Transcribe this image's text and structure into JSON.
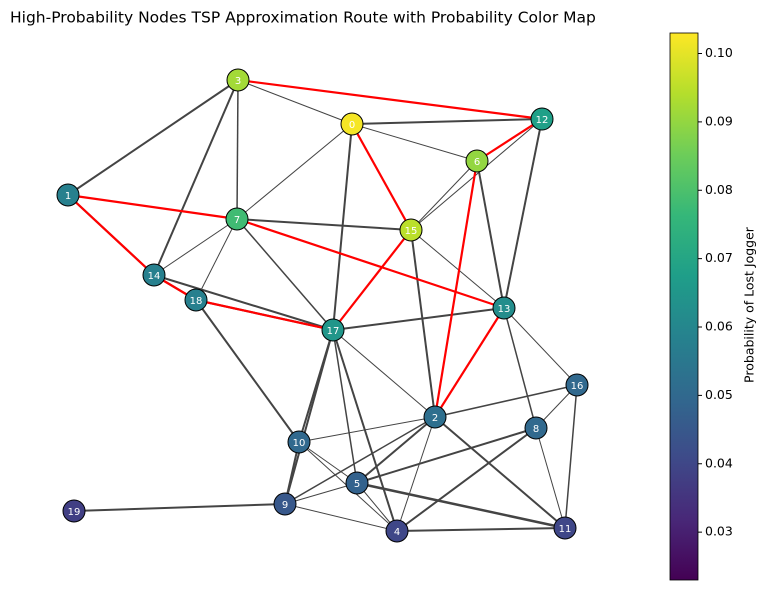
{
  "chart_data": {
    "type": "network",
    "title": "High-Probability Nodes TSP Approximation Route with Probability Color Map",
    "categories": [
      "0",
      "1",
      "2",
      "3",
      "4",
      "5",
      "6",
      "7",
      "8",
      "9",
      "10",
      "11",
      "12",
      "13",
      "14",
      "15",
      "16",
      "17",
      "18",
      "19"
    ],
    "values": [
      0.102,
      0.058,
      0.052,
      0.092,
      0.04,
      0.048,
      0.09,
      0.078,
      0.05,
      0.045,
      0.05,
      0.04,
      0.068,
      0.062,
      0.058,
      0.095,
      0.05,
      0.065,
      0.058,
      0.038
    ],
    "colorbar_label": "Probability of Lost Jogger",
    "ylim": [
      0.023,
      0.103
    ],
    "yticks": [
      0.03,
      0.04,
      0.05,
      0.06,
      0.07,
      0.08,
      0.09,
      {
        "value": 0.1,
        "label": "0.10"
      }
    ],
    "colormap": "viridis",
    "route_color": "#ff0000"
  }
}
